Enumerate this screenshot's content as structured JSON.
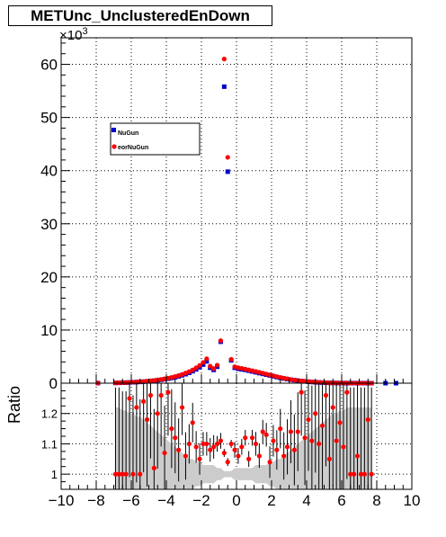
{
  "title": "METUnc_UnclusteredEnDown",
  "colors": {
    "series1": "#0000cc",
    "series2": "#ff0000",
    "band": "#cccccc",
    "frame": "#000000"
  },
  "chart_data": [
    {
      "type": "scatter",
      "panel": "top",
      "title": "METUnc_UnclusteredEnDown",
      "xlabel": "",
      "ylabel": "",
      "xlim": [
        -10,
        10
      ],
      "ylim": [
        0,
        65000
      ],
      "y_exponent_label": "×10",
      "y_exponent_power": "3",
      "y_ticks": [
        0,
        10000,
        20000,
        30000,
        40000,
        50000,
        60000
      ],
      "y_tick_labels": [
        "0",
        "10",
        "20",
        "30",
        "40",
        "50",
        "60"
      ],
      "grid": true,
      "legend": "upper-left",
      "series": [
        {
          "name": "NuGun",
          "x": [
            -7.9,
            -6.9,
            -6.7,
            -6.5,
            -6.3,
            -6.1,
            -5.9,
            -5.7,
            -5.5,
            -5.3,
            -5.1,
            -4.9,
            -4.7,
            -4.5,
            -4.3,
            -4.1,
            -3.9,
            -3.7,
            -3.5,
            -3.3,
            -3.1,
            -2.9,
            -2.7,
            -2.5,
            -2.3,
            -2.1,
            -1.9,
            -1.7,
            -1.5,
            -1.3,
            -1.1,
            -0.9,
            -0.7,
            -0.5,
            -0.3,
            -0.1,
            0.1,
            0.3,
            0.5,
            0.7,
            0.9,
            1.1,
            1.3,
            1.5,
            1.7,
            1.9,
            2.1,
            2.3,
            2.5,
            2.7,
            2.9,
            3.1,
            3.3,
            3.5,
            3.7,
            3.9,
            4.1,
            4.3,
            4.5,
            4.7,
            4.9,
            5.1,
            5.3,
            5.5,
            5.7,
            5.9,
            6.1,
            6.3,
            6.5,
            6.7,
            6.9,
            7.1,
            7.3,
            7.5,
            7.7,
            8.5,
            9.1
          ],
          "y": [
            20,
            50,
            70,
            90,
            110,
            140,
            170,
            200,
            240,
            290,
            340,
            400,
            470,
            550,
            640,
            740,
            850,
            980,
            1120,
            1290,
            1480,
            1700,
            1950,
            2250,
            2600,
            3000,
            3500,
            4100,
            2900,
            2500,
            3100,
            7800,
            55800,
            39800,
            4300,
            2900,
            2700,
            2600,
            2500,
            2350,
            2200,
            2050,
            1900,
            1750,
            1600,
            1450,
            1300,
            1150,
            1000,
            880,
            760,
            650,
            560,
            470,
            400,
            330,
            270,
            220,
            180,
            140,
            110,
            85,
            65,
            50,
            40,
            30,
            25,
            20,
            15,
            12,
            10,
            8,
            6,
            5,
            4,
            3,
            2
          ]
        },
        {
          "name": "eorNuGun",
          "x": [
            -7.9,
            -6.9,
            -6.7,
            -6.5,
            -6.3,
            -6.1,
            -5.9,
            -5.7,
            -5.5,
            -5.3,
            -5.1,
            -4.9,
            -4.7,
            -4.5,
            -4.3,
            -4.1,
            -3.9,
            -3.7,
            -3.5,
            -3.3,
            -3.1,
            -2.9,
            -2.7,
            -2.5,
            -2.3,
            -2.1,
            -1.9,
            -1.7,
            -1.5,
            -1.3,
            -1.1,
            -0.9,
            -0.7,
            -0.5,
            -0.3,
            -0.1,
            0.1,
            0.3,
            0.5,
            0.7,
            0.9,
            1.1,
            1.3,
            1.5,
            1.7,
            1.9,
            2.1,
            2.3,
            2.5,
            2.7,
            2.9,
            3.1,
            3.3,
            3.5,
            3.7,
            3.9,
            4.1,
            4.3,
            4.5,
            4.7,
            4.9,
            5.1,
            5.3,
            5.5,
            5.7,
            5.9,
            6.1,
            6.3,
            6.5,
            6.7,
            6.9,
            7.1,
            7.3,
            7.5,
            7.7
          ],
          "y": [
            20,
            55,
            80,
            100,
            125,
            155,
            190,
            225,
            270,
            320,
            380,
            445,
            520,
            610,
            710,
            820,
            945,
            1090,
            1250,
            1440,
            1650,
            1900,
            2180,
            2500,
            2900,
            3350,
            3900,
            4600,
            3200,
            2750,
            3400,
            8000,
            61000,
            42500,
            4500,
            3100,
            2900,
            2800,
            2650,
            2500,
            2350,
            2200,
            2050,
            1880,
            1720,
            1560,
            1400,
            1240,
            1080,
            950,
            820,
            700,
            600,
            510,
            430,
            360,
            295,
            240,
            195,
            155,
            120,
            95,
            72,
            56,
            44,
            34,
            27,
            21,
            16,
            13,
            11,
            9,
            7,
            5,
            4
          ]
        }
      ]
    },
    {
      "type": "scatter",
      "panel": "ratio",
      "xlabel": "",
      "ylabel": "Ratio",
      "xlim": [
        -10,
        10
      ],
      "ylim": [
        0.95,
        1.3
      ],
      "y_ticks": [
        1,
        1.1,
        1.2
      ],
      "y_tick_labels": [
        "1",
        "1.1",
        "1.2"
      ],
      "x_ticks": [
        -10,
        -8,
        -6,
        -4,
        -2,
        0,
        2,
        4,
        6,
        8,
        10
      ],
      "x_tick_labels": [
        "−10",
        "−8",
        "−6",
        "−4",
        "−2",
        "0",
        "2",
        "4",
        "6",
        "8",
        "10"
      ],
      "grid": true,
      "series": [
        {
          "name": "",
          "x": [
            -6.9,
            -6.7,
            -6.5,
            -6.3,
            -6.1,
            -5.9,
            -5.7,
            -5.5,
            -5.3,
            -5.1,
            -4.9,
            -4.7,
            -4.5,
            -4.3,
            -4.1,
            -3.9,
            -3.7,
            -3.5,
            -3.3,
            -3.1,
            -2.9,
            -2.7,
            -2.5,
            -2.3,
            -2.1,
            -1.9,
            -1.7,
            -1.5,
            -1.3,
            -1.1,
            -0.9,
            -0.7,
            -0.5,
            -0.3,
            -0.1,
            0.1,
            0.3,
            0.5,
            0.7,
            0.9,
            1.1,
            1.3,
            1.5,
            1.7,
            1.9,
            2.1,
            2.3,
            2.5,
            2.7,
            2.9,
            3.1,
            3.3,
            3.5,
            3.7,
            3.9,
            4.1,
            4.3,
            4.5,
            4.7,
            4.9,
            5.1,
            5.3,
            5.5,
            5.7,
            5.9,
            6.1,
            6.3,
            6.5,
            6.7,
            6.9,
            7.1,
            7.3,
            7.5,
            7.7
          ],
          "y": [
            1.0,
            1.0,
            1.0,
            1.0,
            1.25,
            1.0,
            1.22,
            1.0,
            1.24,
            1.18,
            1.26,
            1.02,
            1.2,
            1.26,
            1.07,
            1.27,
            1.15,
            1.12,
            1.08,
            1.22,
            1.06,
            1.1,
            1.17,
            1.09,
            1.05,
            1.1,
            1.1,
            1.08,
            1.09,
            1.1,
            1.11,
            1.07,
            1.04,
            1.1,
            1.08,
            1.06,
            1.09,
            1.12,
            1.05,
            1.12,
            1.1,
            1.06,
            1.14,
            1.13,
            1.04,
            1.11,
            1.08,
            1.15,
            1.06,
            1.09,
            1.14,
            1.08,
            1.14,
            1.27,
            1.12,
            1.18,
            1.11,
            1.2,
            1.1,
            1.16,
            1.26,
            1.05,
            1.22,
            1.11,
            1.17,
            1.09,
            1.27,
            1.0,
            1.0,
            1.06,
            1.0,
            1.0,
            1.18,
            1.0
          ],
          "err": [
            0.22,
            0.22,
            0.21,
            0.21,
            0.2,
            0.2,
            0.19,
            0.19,
            0.18,
            0.17,
            0.16,
            0.15,
            0.14,
            0.13,
            0.12,
            0.11,
            0.1,
            0.09,
            0.08,
            0.07,
            0.06,
            0.05,
            0.05,
            0.04,
            0.04,
            0.03,
            0.03,
            0.03,
            0.03,
            0.02,
            0.02,
            0.01,
            0.01,
            0.01,
            0.02,
            0.02,
            0.02,
            0.02,
            0.02,
            0.02,
            0.03,
            0.03,
            0.03,
            0.03,
            0.04,
            0.04,
            0.05,
            0.05,
            0.06,
            0.07,
            0.08,
            0.09,
            0.1,
            0.11,
            0.12,
            0.13,
            0.14,
            0.15,
            0.16,
            0.17,
            0.18,
            0.19,
            0.2,
            0.2,
            0.21,
            0.21,
            0.22,
            0.22,
            0.22,
            0.22,
            0.22,
            0.22,
            0.22,
            0.22
          ]
        }
      ]
    }
  ]
}
